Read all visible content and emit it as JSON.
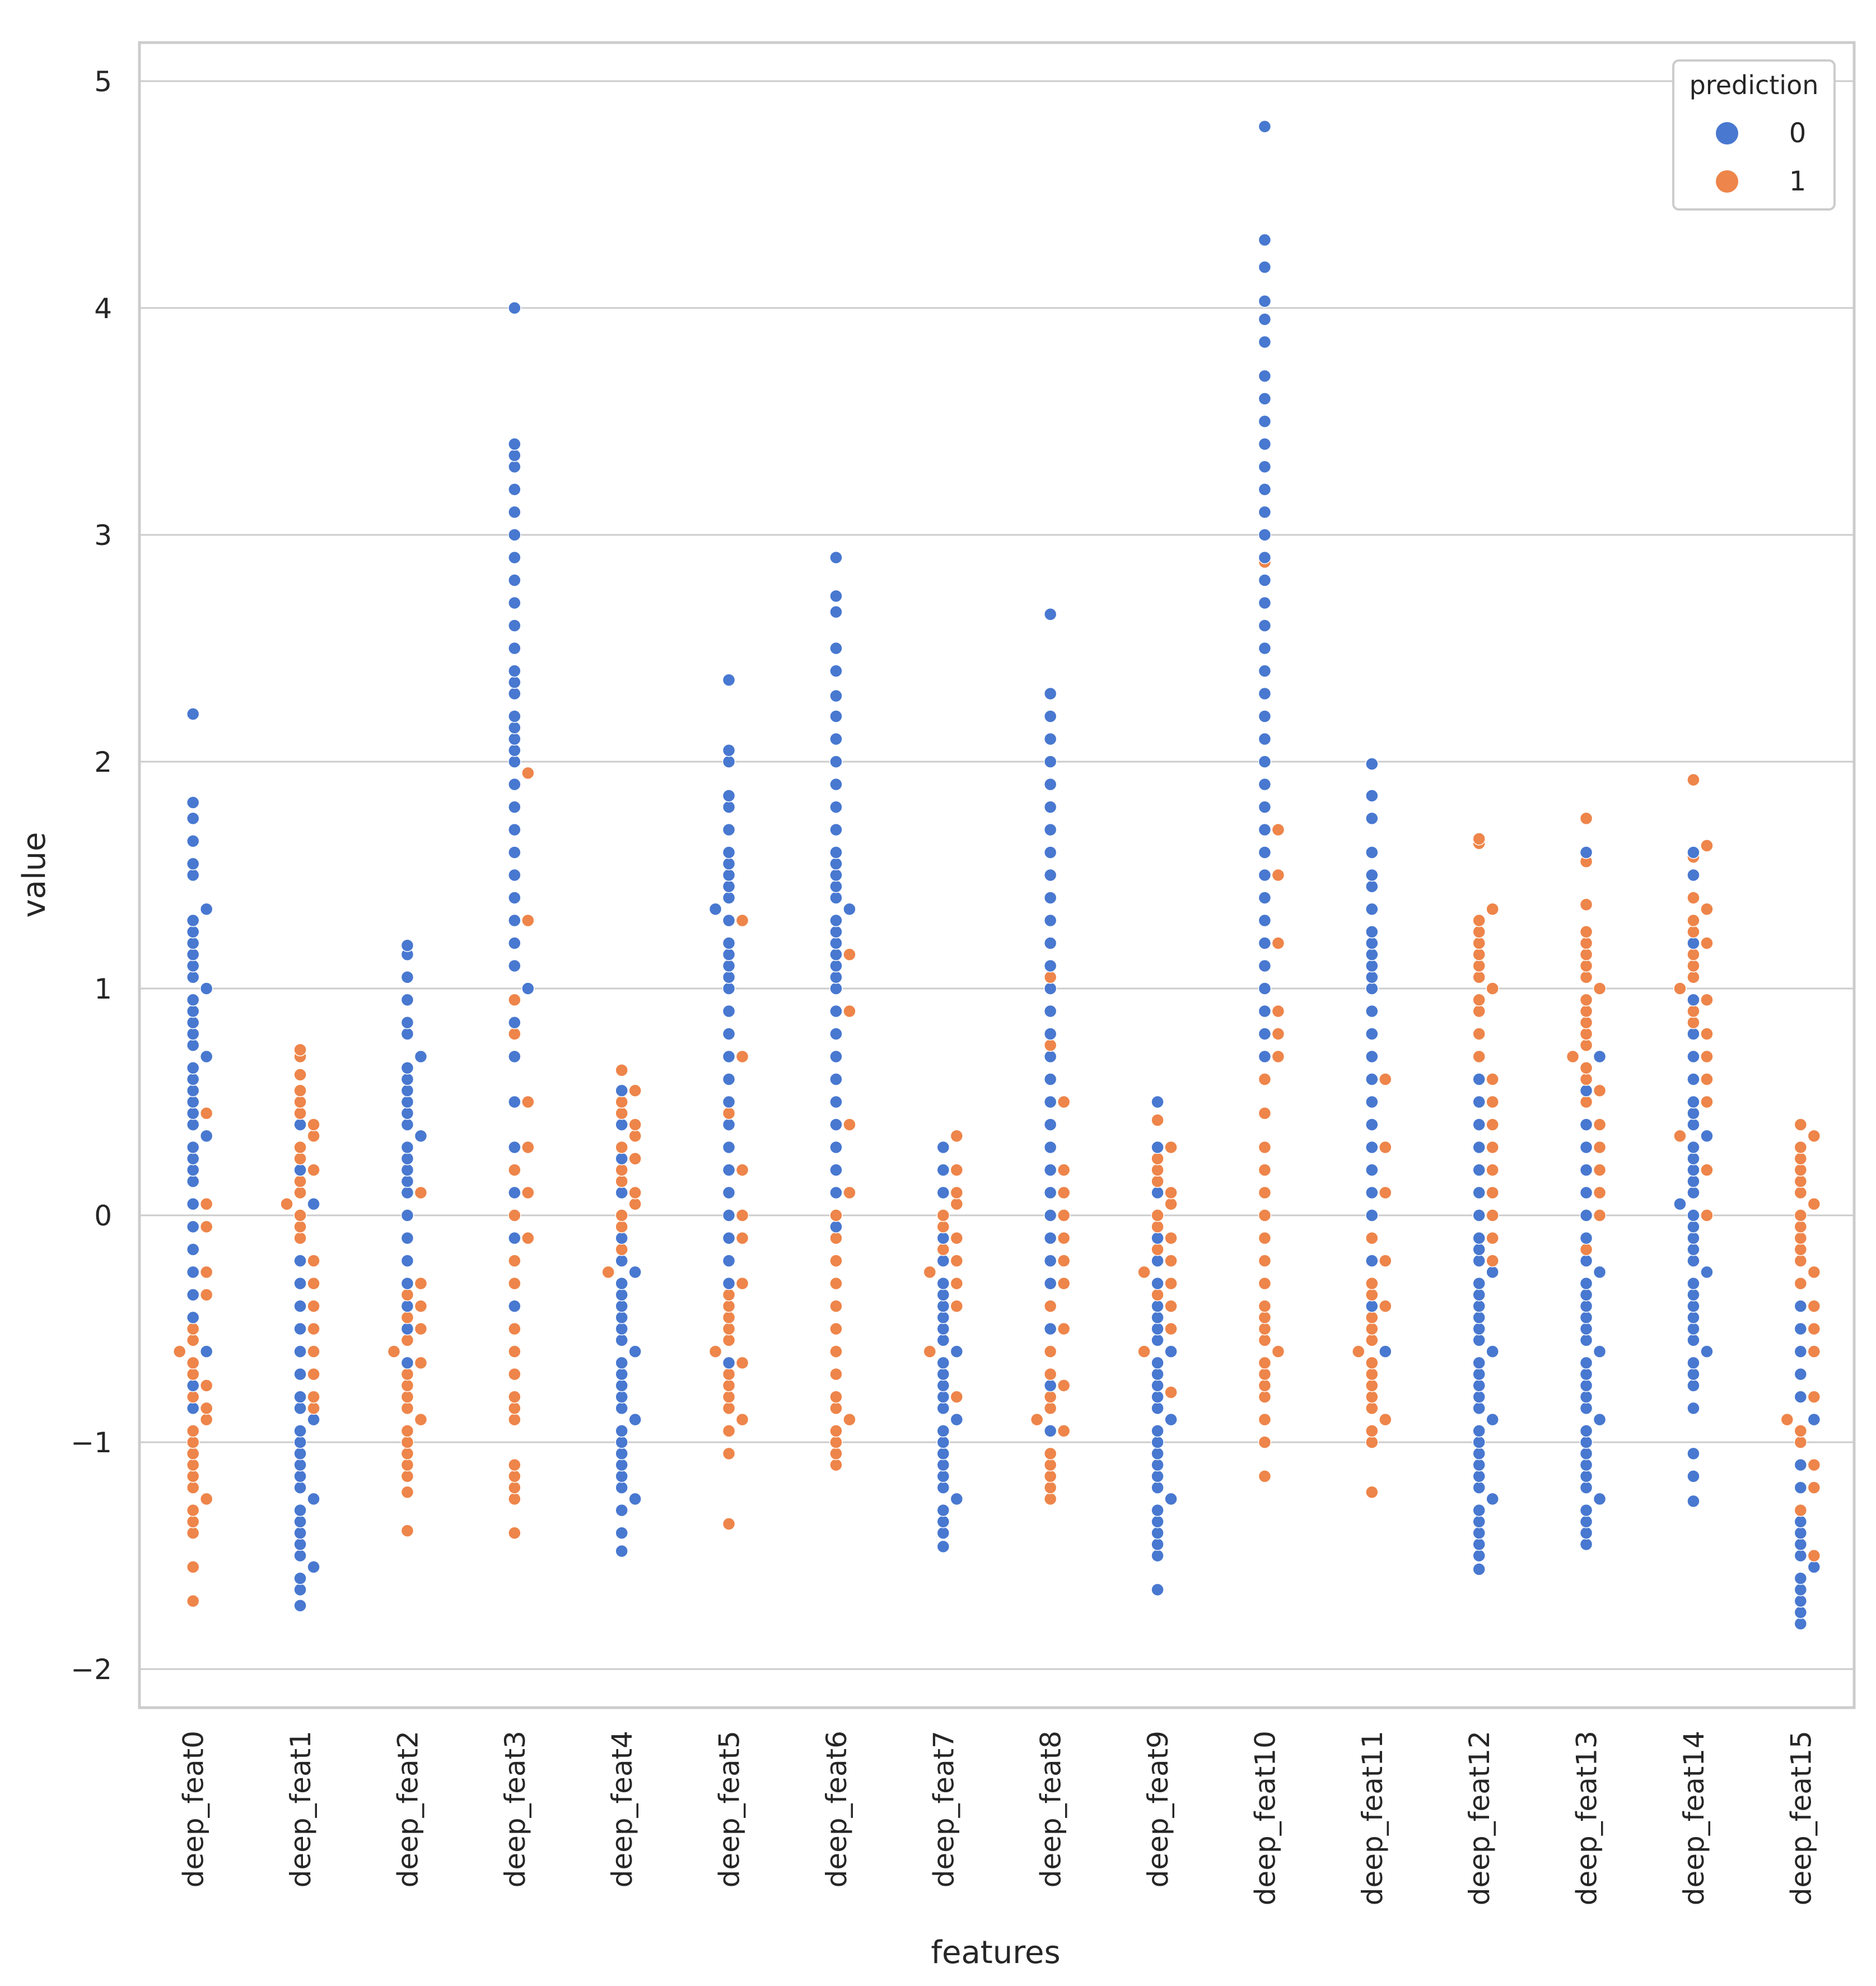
{
  "chart_data": {
    "type": "scatter",
    "subtype": "swarm",
    "xlabel": "features",
    "ylabel": "value",
    "ylim": [
      -2.17,
      5.17
    ],
    "yticks": [
      -2,
      -1,
      0,
      1,
      2,
      3,
      4,
      5
    ],
    "ytick_labels": [
      "−2",
      "−1",
      "0",
      "1",
      "2",
      "3",
      "4",
      "5"
    ],
    "grid": true,
    "legend": {
      "title": "prediction",
      "position": "top-right",
      "entries": [
        "0",
        "1"
      ]
    },
    "colors": {
      "0": "#4878d0",
      "1": "#ee854a",
      "grid": "#cccccc",
      "frame": "#cccccc"
    },
    "categories": [
      "deep_feat0",
      "deep_feat1",
      "deep_feat2",
      "deep_feat3",
      "deep_feat4",
      "deep_feat5",
      "deep_feat6",
      "deep_feat7",
      "deep_feat8",
      "deep_feat9",
      "deep_feat10",
      "deep_feat11",
      "deep_feat12",
      "deep_feat13",
      "deep_feat14",
      "deep_feat15"
    ],
    "series": [
      {
        "name": "0",
        "values": [
          [
            -0.85,
            -0.75,
            -0.6,
            -0.45,
            -0.35,
            -0.25,
            -0.15,
            -0.05,
            0.05,
            0.15,
            0.2,
            0.25,
            0.3,
            0.35,
            0.4,
            0.45,
            0.5,
            0.55,
            0.6,
            0.65,
            0.7,
            0.75,
            0.8,
            0.85,
            0.9,
            0.95,
            1.0,
            1.05,
            1.1,
            1.15,
            1.2,
            1.25,
            1.3,
            1.35,
            1.5,
            1.55,
            1.65,
            1.75,
            1.82,
            2.21
          ],
          [
            -1.72,
            -1.65,
            -1.6,
            -1.55,
            -1.5,
            -1.45,
            -1.4,
            -1.35,
            -1.3,
            -1.25,
            -1.2,
            -1.15,
            -1.1,
            -1.05,
            -1.0,
            -0.95,
            -0.9,
            -0.85,
            -0.8,
            -0.7,
            -0.6,
            -0.5,
            -0.4,
            -0.3,
            -0.2,
            0.05,
            0.2,
            0.4
          ],
          [
            -0.65,
            -0.5,
            -0.4,
            -0.3,
            -0.2,
            -0.1,
            0.0,
            0.1,
            0.15,
            0.2,
            0.25,
            0.3,
            0.35,
            0.4,
            0.45,
            0.5,
            0.55,
            0.6,
            0.65,
            0.7,
            0.8,
            0.85,
            0.95,
            1.05,
            1.15,
            1.19
          ],
          [
            -0.4,
            -0.1,
            0.1,
            0.3,
            0.5,
            0.7,
            0.85,
            1.0,
            1.1,
            1.2,
            1.3,
            1.4,
            1.5,
            1.6,
            1.7,
            1.8,
            1.9,
            2.0,
            2.05,
            2.1,
            2.15,
            2.2,
            2.3,
            2.35,
            2.4,
            2.5,
            2.6,
            2.7,
            2.8,
            2.9,
            3.0,
            3.1,
            3.2,
            3.3,
            3.35,
            3.4,
            4.0
          ],
          [
            -1.48,
            -1.4,
            -1.3,
            -1.25,
            -1.2,
            -1.15,
            -1.1,
            -1.05,
            -1.0,
            -0.95,
            -0.9,
            -0.85,
            -0.8,
            -0.75,
            -0.7,
            -0.65,
            -0.6,
            -0.55,
            -0.5,
            -0.45,
            -0.4,
            -0.35,
            -0.3,
            -0.25,
            -0.2,
            -0.1,
            0.1,
            0.25,
            0.4,
            0.55
          ],
          [
            -0.65,
            -0.3,
            -0.2,
            -0.1,
            0.0,
            0.1,
            0.2,
            0.3,
            0.4,
            0.5,
            0.6,
            0.7,
            0.8,
            0.9,
            1.0,
            1.05,
            1.1,
            1.15,
            1.2,
            1.3,
            1.35,
            1.4,
            1.45,
            1.5,
            1.55,
            1.6,
            1.7,
            1.8,
            1.85,
            2.0,
            2.05,
            2.36
          ],
          [
            -0.05,
            0.1,
            0.2,
            0.3,
            0.4,
            0.5,
            0.6,
            0.7,
            0.8,
            0.9,
            1.0,
            1.05,
            1.1,
            1.15,
            1.2,
            1.25,
            1.3,
            1.35,
            1.4,
            1.45,
            1.5,
            1.55,
            1.6,
            1.7,
            1.8,
            1.9,
            2.0,
            2.1,
            2.2,
            2.29,
            2.4,
            2.5,
            2.66,
            2.73,
            2.9
          ],
          [
            -1.46,
            -1.4,
            -1.35,
            -1.3,
            -1.25,
            -1.2,
            -1.15,
            -1.1,
            -1.05,
            -1.0,
            -0.95,
            -0.9,
            -0.85,
            -0.8,
            -0.75,
            -0.7,
            -0.65,
            -0.6,
            -0.55,
            -0.5,
            -0.45,
            -0.4,
            -0.35,
            -0.3,
            -0.2,
            -0.1,
            0.1,
            0.2,
            0.3
          ],
          [
            -0.95,
            -0.75,
            -0.5,
            -0.3,
            -0.2,
            -0.1,
            0.0,
            0.1,
            0.2,
            0.3,
            0.4,
            0.5,
            0.6,
            0.7,
            0.8,
            0.9,
            1.0,
            1.1,
            1.2,
            1.3,
            1.4,
            1.5,
            1.6,
            1.7,
            1.8,
            1.9,
            2.0,
            2.1,
            2.2,
            2.3,
            2.65
          ],
          [
            -1.65,
            -1.5,
            -1.45,
            -1.4,
            -1.35,
            -1.3,
            -1.25,
            -1.2,
            -1.15,
            -1.1,
            -1.05,
            -1.0,
            -0.95,
            -0.9,
            -0.85,
            -0.8,
            -0.75,
            -0.7,
            -0.65,
            -0.6,
            -0.55,
            -0.5,
            -0.45,
            -0.4,
            -0.3,
            -0.2,
            -0.1,
            0.1,
            0.3,
            0.5
          ],
          [
            0.7,
            0.8,
            0.9,
            1.0,
            1.1,
            1.2,
            1.3,
            1.4,
            1.5,
            1.6,
            1.7,
            1.8,
            1.9,
            2.0,
            2.1,
            2.2,
            2.3,
            2.4,
            2.5,
            2.6,
            2.7,
            2.8,
            2.9,
            3.0,
            3.1,
            3.2,
            3.3,
            3.4,
            3.5,
            3.6,
            3.7,
            3.85,
            3.95,
            4.03,
            4.18,
            4.3,
            4.8
          ],
          [
            -0.6,
            -0.4,
            -0.2,
            0.0,
            0.1,
            0.2,
            0.3,
            0.4,
            0.5,
            0.6,
            0.7,
            0.8,
            0.9,
            1.0,
            1.05,
            1.1,
            1.15,
            1.2,
            1.25,
            1.35,
            1.45,
            1.5,
            1.6,
            1.75,
            1.85,
            1.99
          ],
          [
            -1.56,
            -1.5,
            -1.45,
            -1.4,
            -1.35,
            -1.3,
            -1.25,
            -1.2,
            -1.15,
            -1.1,
            -1.05,
            -1.0,
            -0.95,
            -0.9,
            -0.85,
            -0.8,
            -0.75,
            -0.7,
            -0.65,
            -0.6,
            -0.55,
            -0.5,
            -0.45,
            -0.4,
            -0.35,
            -0.3,
            -0.25,
            -0.2,
            -0.15,
            -0.1,
            0.0,
            0.1,
            0.2,
            0.3,
            0.4,
            0.5,
            0.6
          ],
          [
            -1.45,
            -1.4,
            -1.35,
            -1.3,
            -1.25,
            -1.2,
            -1.15,
            -1.1,
            -1.05,
            -1.0,
            -0.95,
            -0.9,
            -0.85,
            -0.8,
            -0.75,
            -0.7,
            -0.65,
            -0.6,
            -0.55,
            -0.5,
            -0.45,
            -0.4,
            -0.35,
            -0.3,
            -0.25,
            -0.2,
            -0.1,
            0.0,
            0.1,
            0.2,
            0.3,
            0.4,
            0.55,
            0.7,
            1.6
          ],
          [
            -1.26,
            -1.15,
            -1.05,
            -0.85,
            -0.75,
            -0.7,
            -0.65,
            -0.6,
            -0.55,
            -0.5,
            -0.45,
            -0.4,
            -0.35,
            -0.3,
            -0.25,
            -0.2,
            -0.15,
            -0.1,
            -0.05,
            0.0,
            0.05,
            0.1,
            0.15,
            0.2,
            0.25,
            0.3,
            0.35,
            0.4,
            0.45,
            0.5,
            0.6,
            0.7,
            0.8,
            0.95,
            1.2,
            1.5,
            1.6
          ],
          [
            -1.8,
            -1.75,
            -1.7,
            -1.65,
            -1.6,
            -1.55,
            -1.5,
            -1.45,
            -1.4,
            -1.35,
            -1.2,
            -1.1,
            -0.9,
            -0.8,
            -0.7,
            -0.6,
            -0.5,
            -0.4
          ]
        ]
      },
      {
        "name": "1",
        "values": [
          [
            -1.7,
            -1.55,
            -1.4,
            -1.35,
            -1.3,
            -1.25,
            -1.2,
            -1.15,
            -1.1,
            -1.05,
            -1.0,
            -0.95,
            -0.9,
            -0.85,
            -0.8,
            -0.75,
            -0.7,
            -0.65,
            -0.6,
            -0.55,
            -0.5,
            -0.35,
            -0.25,
            -0.05,
            0.05,
            0.45
          ],
          [
            -0.85,
            -0.8,
            -0.7,
            -0.6,
            -0.5,
            -0.4,
            -0.3,
            -0.2,
            -0.1,
            -0.05,
            0.0,
            0.05,
            0.1,
            0.15,
            0.2,
            0.25,
            0.3,
            0.35,
            0.4,
            0.45,
            0.5,
            0.55,
            0.62,
            0.7,
            0.73
          ],
          [
            -1.39,
            -1.22,
            -1.15,
            -1.1,
            -1.05,
            -1.0,
            -0.95,
            -0.9,
            -0.85,
            -0.8,
            -0.75,
            -0.7,
            -0.65,
            -0.6,
            -0.55,
            -0.5,
            -0.45,
            -0.4,
            -0.35,
            -0.3,
            0.1
          ],
          [
            -1.4,
            -1.25,
            -1.2,
            -1.15,
            -1.1,
            -0.9,
            -0.85,
            -0.8,
            -0.7,
            -0.6,
            -0.5,
            -0.3,
            -0.2,
            -0.1,
            0.0,
            0.1,
            0.2,
            0.3,
            0.5,
            0.8,
            0.95,
            1.3,
            1.95
          ],
          [
            -0.25,
            -0.15,
            -0.05,
            0.0,
            0.05,
            0.1,
            0.15,
            0.2,
            0.25,
            0.3,
            0.35,
            0.4,
            0.45,
            0.5,
            0.55,
            0.64
          ],
          [
            -1.36,
            -1.05,
            -0.95,
            -0.9,
            -0.85,
            -0.8,
            -0.75,
            -0.7,
            -0.65,
            -0.6,
            -0.55,
            -0.5,
            -0.45,
            -0.4,
            -0.35,
            -0.3,
            -0.1,
            0.0,
            0.2,
            0.45,
            0.7,
            1.3
          ],
          [
            -1.1,
            -1.05,
            -1.0,
            -0.95,
            -0.9,
            -0.85,
            -0.8,
            -0.7,
            -0.6,
            -0.5,
            -0.4,
            -0.3,
            -0.2,
            -0.1,
            0.0,
            0.1,
            0.4,
            0.9,
            1.15
          ],
          [
            -0.8,
            -0.6,
            -0.4,
            -0.3,
            -0.25,
            -0.2,
            -0.15,
            -0.1,
            -0.05,
            0.0,
            0.05,
            0.1,
            0.2,
            0.35
          ],
          [
            -1.25,
            -1.2,
            -1.15,
            -1.1,
            -1.05,
            -0.95,
            -0.9,
            -0.85,
            -0.8,
            -0.75,
            -0.7,
            -0.6,
            -0.5,
            -0.4,
            -0.3,
            -0.2,
            -0.1,
            0.0,
            0.1,
            0.2,
            0.5,
            0.75,
            1.05
          ],
          [
            -0.78,
            -0.6,
            -0.5,
            -0.4,
            -0.35,
            -0.3,
            -0.25,
            -0.2,
            -0.15,
            -0.1,
            -0.05,
            0.0,
            0.05,
            0.1,
            0.15,
            0.2,
            0.25,
            0.3,
            0.42
          ],
          [
            -1.15,
            -1.0,
            -0.9,
            -0.8,
            -0.75,
            -0.7,
            -0.65,
            -0.6,
            -0.55,
            -0.5,
            -0.45,
            -0.4,
            -0.3,
            -0.2,
            -0.1,
            0.0,
            0.1,
            0.2,
            0.3,
            0.45,
            0.6,
            0.7,
            0.8,
            0.9,
            1.2,
            1.5,
            1.7,
            2.88
          ],
          [
            -1.22,
            -1.0,
            -0.95,
            -0.9,
            -0.85,
            -0.8,
            -0.75,
            -0.7,
            -0.65,
            -0.6,
            -0.55,
            -0.5,
            -0.45,
            -0.4,
            -0.35,
            -0.3,
            -0.2,
            -0.1,
            0.1,
            0.3,
            0.6
          ],
          [
            -0.2,
            -0.1,
            0.0,
            0.1,
            0.2,
            0.3,
            0.4,
            0.5,
            0.6,
            0.7,
            0.8,
            0.9,
            0.95,
            1.0,
            1.05,
            1.1,
            1.15,
            1.2,
            1.25,
            1.3,
            1.35,
            1.64,
            1.66
          ],
          [
            -0.15,
            0.0,
            0.1,
            0.2,
            0.3,
            0.4,
            0.5,
            0.55,
            0.6,
            0.65,
            0.7,
            0.75,
            0.8,
            0.85,
            0.9,
            0.95,
            1.0,
            1.05,
            1.1,
            1.15,
            1.2,
            1.25,
            1.37,
            1.56,
            1.75
          ],
          [
            0.0,
            0.2,
            0.35,
            0.5,
            0.6,
            0.7,
            0.8,
            0.85,
            0.9,
            0.95,
            1.0,
            1.05,
            1.1,
            1.15,
            1.2,
            1.25,
            1.3,
            1.35,
            1.4,
            1.58,
            1.63,
            1.92
          ],
          [
            -1.5,
            -1.3,
            -1.2,
            -1.1,
            -1.0,
            -0.95,
            -0.9,
            -0.8,
            -0.6,
            -0.5,
            -0.4,
            -0.3,
            -0.25,
            -0.2,
            -0.15,
            -0.1,
            -0.05,
            0.0,
            0.05,
            0.1,
            0.15,
            0.2,
            0.25,
            0.3,
            0.35,
            0.4
          ]
        ]
      }
    ]
  }
}
